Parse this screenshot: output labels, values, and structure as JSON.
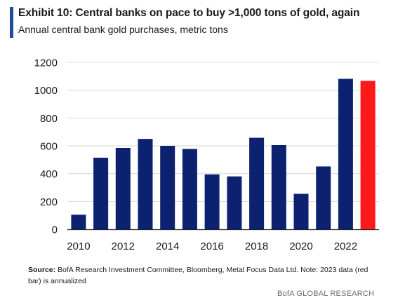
{
  "header": {
    "title": "Exhibit 10: Central banks on pace to buy >1,000 tons of gold, again",
    "subtitle": "Annual central bank gold purchases, metric tons"
  },
  "chart_data": {
    "type": "bar",
    "categories": [
      "2010",
      "2011",
      "2012",
      "2013",
      "2014",
      "2015",
      "2016",
      "2017",
      "2018",
      "2019",
      "2020",
      "2021",
      "2022",
      "2023"
    ],
    "values": [
      105,
      515,
      585,
      650,
      600,
      578,
      395,
      380,
      658,
      605,
      255,
      452,
      1082,
      1068
    ],
    "x_tick_labels": [
      "2010",
      "2012",
      "2014",
      "2016",
      "2018",
      "2020",
      "2022"
    ],
    "y_ticks": [
      "0",
      "200",
      "400",
      "600",
      "800",
      "1000",
      "1200"
    ],
    "ylim": [
      0,
      1200
    ],
    "grid": true,
    "colors": {
      "bar": "#0c2270",
      "highlight": "#ff1a1a",
      "grid": "#d9d9d9"
    },
    "highlight_index": 13
  },
  "footer": {
    "source_label": "Source:",
    "source_text": " BofA Research Investment Committee, Bloomberg, Metal Focus Data Ltd. Note: 2023 data (red bar) is annualized",
    "brand": "BofA GLOBAL RESEARCH"
  }
}
